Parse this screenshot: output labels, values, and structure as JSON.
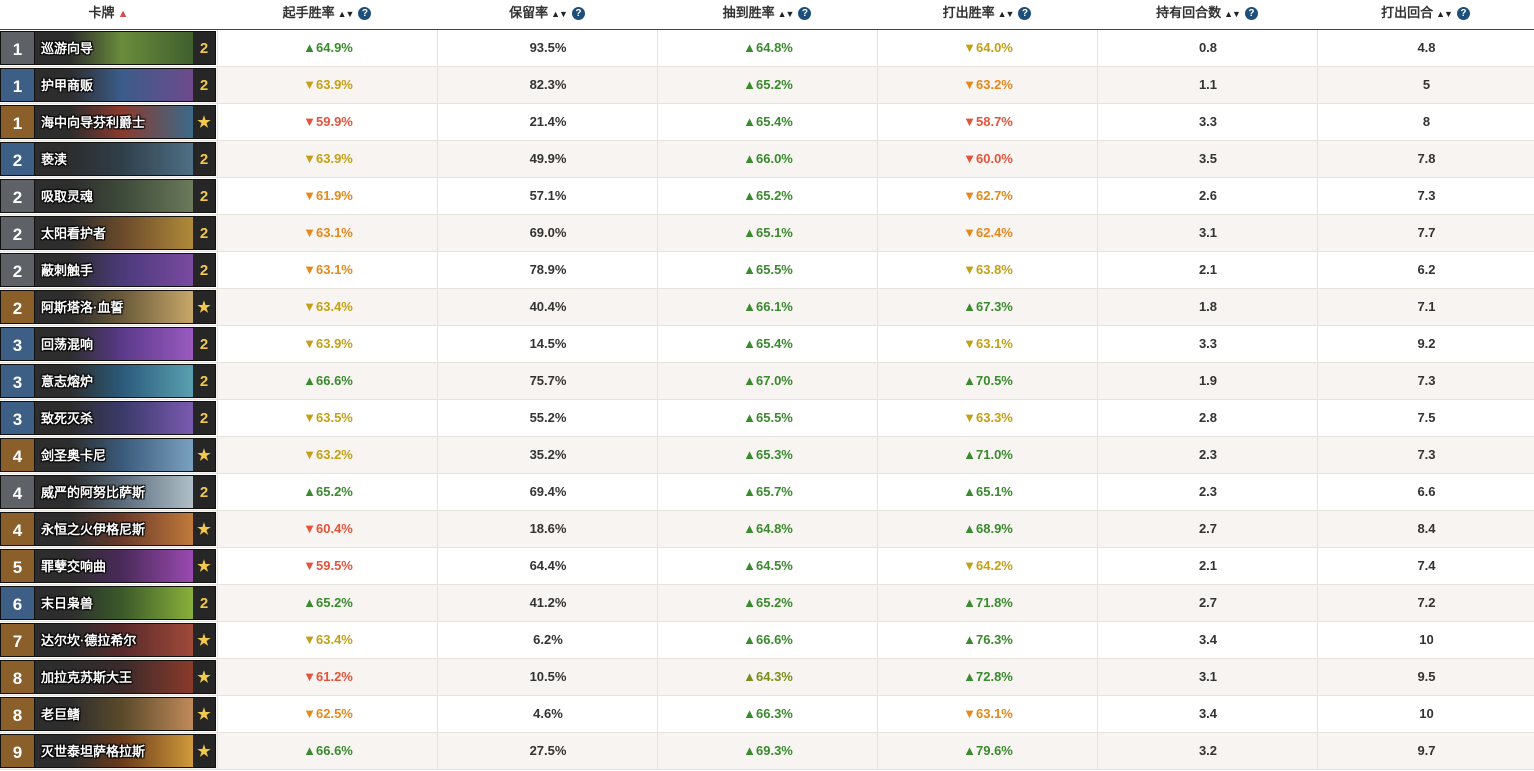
{
  "columns": {
    "card": "卡牌",
    "mulligan": "起手胜率",
    "keep": "保留率",
    "drawn": "抽到胜率",
    "played": "打出胜率",
    "held": "持有回合数",
    "turn": "打出回合"
  },
  "sort_indicator": "▲",
  "sort_icon": "▲▼",
  "help_icon": "?",
  "rows": [
    {
      "cost": "1",
      "rarity": "com",
      "name": "巡游向导",
      "count": "2",
      "art": [
        "#6a8c3b",
        "#3f5f2e"
      ],
      "mulligan": "▲64.9%",
      "m_cls": "up",
      "keep": "93.5%",
      "drawn": "▲64.8%",
      "d_cls": "up",
      "played": "▼64.0%",
      "p_cls": "down-gold",
      "held": "0.8",
      "turn": "4.8"
    },
    {
      "cost": "1",
      "rarity": "rare",
      "name": "护甲商贩",
      "count": "2",
      "art": [
        "#3b5c8a",
        "#6e4a8c"
      ],
      "mulligan": "▼63.9%",
      "m_cls": "down-gold",
      "keep": "82.3%",
      "drawn": "▲65.2%",
      "d_cls": "up",
      "played": "▼63.2%",
      "p_cls": "down-orange",
      "held": "1.1",
      "turn": "5"
    },
    {
      "cost": "1",
      "rarity": "leg",
      "name": "海中向导芬利爵士",
      "count": "★",
      "art": [
        "#8a3a2e",
        "#3c6a8a"
      ],
      "mulligan": "▼59.9%",
      "m_cls": "down-red",
      "keep": "21.4%",
      "drawn": "▲65.4%",
      "d_cls": "up",
      "played": "▼58.7%",
      "p_cls": "down-red",
      "held": "3.3",
      "turn": "8"
    },
    {
      "cost": "2",
      "rarity": "rare",
      "name": "亵渎",
      "count": "2",
      "art": [
        "#2f3f4a",
        "#4e6f84"
      ],
      "mulligan": "▼63.9%",
      "m_cls": "down-gold",
      "keep": "49.9%",
      "drawn": "▲66.0%",
      "d_cls": "up",
      "played": "▼60.0%",
      "p_cls": "down-red",
      "held": "3.5",
      "turn": "7.8"
    },
    {
      "cost": "2",
      "rarity": "com",
      "name": "吸取灵魂",
      "count": "2",
      "art": [
        "#3d4a3a",
        "#6a7a5a"
      ],
      "mulligan": "▼61.9%",
      "m_cls": "down-orange",
      "keep": "57.1%",
      "drawn": "▲65.2%",
      "d_cls": "up",
      "played": "▼62.7%",
      "p_cls": "down-orange",
      "held": "2.6",
      "turn": "7.3"
    },
    {
      "cost": "2",
      "rarity": "com",
      "name": "太阳看护者",
      "count": "2",
      "art": [
        "#6a4a2a",
        "#b08a3a"
      ],
      "mulligan": "▼63.1%",
      "m_cls": "down-orange",
      "keep": "69.0%",
      "drawn": "▲65.1%",
      "d_cls": "up",
      "played": "▼62.4%",
      "p_cls": "down-orange",
      "held": "3.1",
      "turn": "7.7"
    },
    {
      "cost": "2",
      "rarity": "com",
      "name": "蔽刺触手",
      "count": "2",
      "art": [
        "#4a3a7a",
        "#7a4aa0"
      ],
      "mulligan": "▼63.1%",
      "m_cls": "down-orange",
      "keep": "78.9%",
      "drawn": "▲65.5%",
      "d_cls": "up",
      "played": "▼63.8%",
      "p_cls": "down-gold",
      "held": "2.1",
      "turn": "6.2"
    },
    {
      "cost": "2",
      "rarity": "leg",
      "name": "阿斯塔洛·血誓",
      "count": "★",
      "art": [
        "#6a5a3a",
        "#c8a86a"
      ],
      "mulligan": "▼63.4%",
      "m_cls": "down-gold",
      "keep": "40.4%",
      "drawn": "▲66.1%",
      "d_cls": "up",
      "played": "▲67.3%",
      "p_cls": "up",
      "held": "1.8",
      "turn": "7.1"
    },
    {
      "cost": "3",
      "rarity": "rare",
      "name": "回荡混响",
      "count": "2",
      "art": [
        "#5a3a8a",
        "#9a5ac0"
      ],
      "mulligan": "▼63.9%",
      "m_cls": "down-gold",
      "keep": "14.5%",
      "drawn": "▲65.4%",
      "d_cls": "up",
      "played": "▼63.1%",
      "p_cls": "down-gold",
      "held": "3.3",
      "turn": "9.2"
    },
    {
      "cost": "3",
      "rarity": "rare",
      "name": "意志熔炉",
      "count": "2",
      "art": [
        "#2a5a7a",
        "#5aa0b0"
      ],
      "mulligan": "▲66.6%",
      "m_cls": "up",
      "keep": "75.7%",
      "drawn": "▲67.0%",
      "d_cls": "up",
      "played": "▲70.5%",
      "p_cls": "up",
      "held": "1.9",
      "turn": "7.3"
    },
    {
      "cost": "3",
      "rarity": "rare",
      "name": "致死灭杀",
      "count": "2",
      "art": [
        "#3a3a6a",
        "#7a5ab0"
      ],
      "mulligan": "▼63.5%",
      "m_cls": "down-gold",
      "keep": "55.2%",
      "drawn": "▲65.5%",
      "d_cls": "up",
      "played": "▼63.3%",
      "p_cls": "down-gold",
      "held": "2.8",
      "turn": "7.5"
    },
    {
      "cost": "4",
      "rarity": "leg",
      "name": "剑圣奥卡尼",
      "count": "★",
      "art": [
        "#3a5a7a",
        "#7aa0c0"
      ],
      "mulligan": "▼63.2%",
      "m_cls": "down-gold",
      "keep": "35.2%",
      "drawn": "▲65.3%",
      "d_cls": "up",
      "played": "▲71.0%",
      "p_cls": "up",
      "held": "2.3",
      "turn": "7.3"
    },
    {
      "cost": "4",
      "rarity": "com",
      "name": "威严的阿努比萨斯",
      "count": "2",
      "art": [
        "#5a6a7a",
        "#b0c0c8"
      ],
      "mulligan": "▲65.2%",
      "m_cls": "up",
      "keep": "69.4%",
      "drawn": "▲65.7%",
      "d_cls": "up",
      "played": "▲65.1%",
      "p_cls": "up",
      "held": "2.3",
      "turn": "6.6"
    },
    {
      "cost": "4",
      "rarity": "leg",
      "name": "永恒之火伊格尼斯",
      "count": "★",
      "art": [
        "#6a3a2a",
        "#c07a3a"
      ],
      "mulligan": "▼60.4%",
      "m_cls": "down-red",
      "keep": "18.6%",
      "drawn": "▲64.8%",
      "d_cls": "up",
      "played": "▲68.9%",
      "p_cls": "up",
      "held": "2.7",
      "turn": "8.4"
    },
    {
      "cost": "5",
      "rarity": "leg",
      "name": "罪孽交响曲",
      "count": "★",
      "art": [
        "#4a2a5a",
        "#9a4ab0"
      ],
      "mulligan": "▼59.5%",
      "m_cls": "down-red",
      "keep": "64.4%",
      "drawn": "▲64.5%",
      "d_cls": "up",
      "played": "▼64.2%",
      "p_cls": "down-gold",
      "held": "2.1",
      "turn": "7.4"
    },
    {
      "cost": "6",
      "rarity": "rare",
      "name": "末日枭兽",
      "count": "2",
      "art": [
        "#3a5a2a",
        "#8ab03a"
      ],
      "mulligan": "▲65.2%",
      "m_cls": "up",
      "keep": "41.2%",
      "drawn": "▲65.2%",
      "d_cls": "up",
      "played": "▲71.8%",
      "p_cls": "up",
      "held": "2.7",
      "turn": "7.2"
    },
    {
      "cost": "7",
      "rarity": "leg",
      "name": "达尔坎·德拉希尔",
      "count": "★",
      "art": [
        "#5a2a2a",
        "#a04a3a"
      ],
      "mulligan": "▼63.4%",
      "m_cls": "down-gold",
      "keep": "6.2%",
      "drawn": "▲66.6%",
      "d_cls": "up",
      "played": "▲76.3%",
      "p_cls": "up",
      "held": "3.4",
      "turn": "10"
    },
    {
      "cost": "8",
      "rarity": "leg",
      "name": "加拉克苏斯大王",
      "count": "★",
      "art": [
        "#3a2a2a",
        "#8a3a2a"
      ],
      "mulligan": "▼61.2%",
      "m_cls": "down-red",
      "keep": "10.5%",
      "drawn": "▲64.3%",
      "d_cls": "up-olive",
      "played": "▲72.8%",
      "p_cls": "up",
      "held": "3.1",
      "turn": "9.5"
    },
    {
      "cost": "8",
      "rarity": "leg",
      "name": "老巨鳍",
      "count": "★",
      "art": [
        "#5a4a2a",
        "#c08a5a"
      ],
      "mulligan": "▼62.5%",
      "m_cls": "down-orange",
      "keep": "4.6%",
      "drawn": "▲66.3%",
      "d_cls": "up",
      "played": "▼63.1%",
      "p_cls": "down-orange",
      "held": "3.4",
      "turn": "10"
    },
    {
      "cost": "9",
      "rarity": "leg",
      "name": "灭世泰坦萨格拉斯",
      "count": "★",
      "art": [
        "#6a3a1a",
        "#d09a3a"
      ],
      "mulligan": "▲66.6%",
      "m_cls": "up",
      "keep": "27.5%",
      "drawn": "▲69.3%",
      "d_cls": "up",
      "played": "▲79.6%",
      "p_cls": "up",
      "held": "3.2",
      "turn": "9.7"
    }
  ]
}
